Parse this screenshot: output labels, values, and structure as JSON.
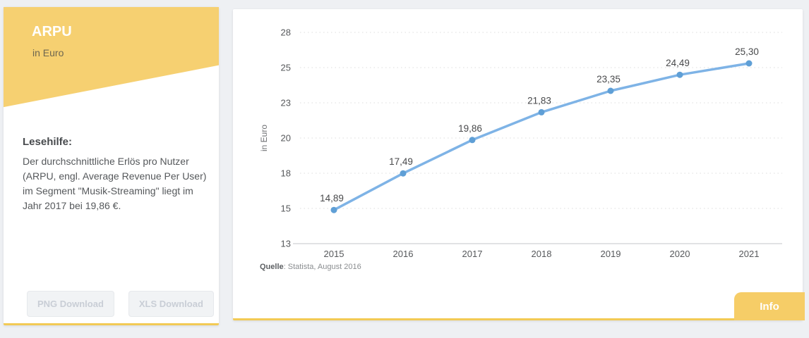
{
  "sidebar": {
    "title": "ARPU",
    "subtitle": "in Euro",
    "accent_color": "#f6d071",
    "reading_aid": {
      "heading": "Lesehilfe:",
      "text": "Der durchschnittliche Erlös pro Nutzer (ARPU, engl. Average Revenue Per User) im Segment \"Musik-Streaming\" liegt im Jahr 2017 bei 19,86 €."
    },
    "buttons": [
      {
        "label": "PNG Download"
      },
      {
        "label": "XLS Download"
      }
    ]
  },
  "chart_card": {
    "source_label": "Quelle",
    "source_rest": ": Statista, August 2016",
    "info_button_label": "Info"
  },
  "chart_data": {
    "type": "line",
    "categories": [
      "2015",
      "2016",
      "2017",
      "2018",
      "2019",
      "2020",
      "2021"
    ],
    "values": [
      14.89,
      17.49,
      19.86,
      21.83,
      23.35,
      24.49,
      25.3
    ],
    "point_labels": [
      "14,89",
      "17,49",
      "19,86",
      "21,83",
      "23,35",
      "24,49",
      "25,30"
    ],
    "title": "",
    "xlabel": "",
    "ylabel": "in Euro",
    "ylim": [
      12.5,
      27.5
    ],
    "yticks": [
      {
        "value": 12.5,
        "label": "13"
      },
      {
        "value": 15.0,
        "label": "15"
      },
      {
        "value": 17.5,
        "label": "18"
      },
      {
        "value": 20.0,
        "label": "20"
      },
      {
        "value": 22.5,
        "label": "23"
      },
      {
        "value": 25.0,
        "label": "25"
      },
      {
        "value": 27.5,
        "label": "28"
      }
    ],
    "grid": "horizontal-dotted",
    "legend_position": "none",
    "line_color": "#7eb3e6",
    "marker_color": "#5f9fd6",
    "label_color": "#48494b",
    "tick_color": "#56585b",
    "source": "Quelle: Statista, August 2016"
  }
}
